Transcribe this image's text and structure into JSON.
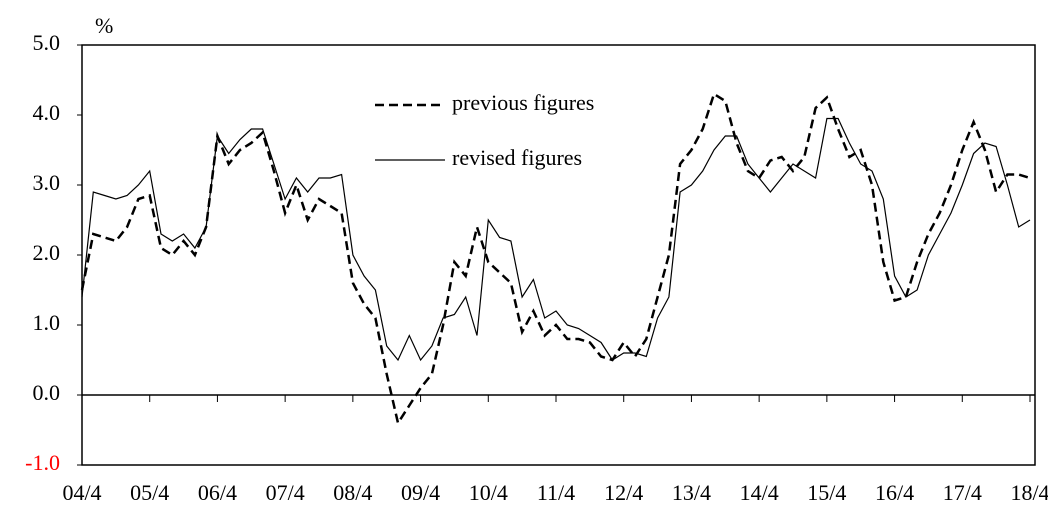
{
  "chart_data": {
    "type": "line",
    "y_axis_label": "%",
    "categories": [
      "04/4",
      null,
      null,
      null,
      null,
      null,
      "05/4",
      null,
      null,
      null,
      null,
      null,
      "06/4",
      null,
      null,
      null,
      null,
      null,
      "07/4",
      null,
      null,
      null,
      null,
      null,
      "08/4",
      null,
      null,
      null,
      null,
      null,
      "09/4",
      null,
      null,
      null,
      null,
      null,
      "10/4",
      null,
      null,
      null,
      null,
      null,
      "11/4",
      null,
      null,
      null,
      null,
      null,
      "12/4",
      null,
      null,
      null,
      null,
      null,
      "13/4",
      null,
      null,
      null,
      null,
      null,
      "14/4",
      null,
      null,
      null,
      null,
      null,
      "15/4",
      null,
      null,
      null,
      null,
      null,
      "16/4",
      null,
      null,
      null,
      null,
      null,
      "17/4",
      null,
      null,
      null,
      null,
      null,
      "18/4"
    ],
    "series": [
      {
        "name": "previous figures",
        "color": "#000000",
        "dash": true,
        "values": [
          1.5,
          2.3,
          2.25,
          2.2,
          2.4,
          2.8,
          2.85,
          2.1,
          2.0,
          2.2,
          2.0,
          2.4,
          3.7,
          3.3,
          3.5,
          3.6,
          3.75,
          3.2,
          2.6,
          3.0,
          2.5,
          2.8,
          2.7,
          2.6,
          1.6,
          1.3,
          1.1,
          0.3,
          -0.4,
          -0.15,
          0.1,
          0.3,
          1.0,
          1.9,
          1.7,
          2.4,
          1.9,
          1.75,
          1.6,
          0.9,
          1.2,
          0.85,
          1.0,
          0.8,
          0.8,
          0.75,
          0.55,
          0.5,
          0.75,
          0.55,
          0.8,
          1.4,
          2.0,
          3.3,
          3.5,
          3.8,
          4.3,
          4.2,
          3.6,
          3.2,
          3.1,
          3.35,
          3.4,
          3.2,
          3.4,
          4.1,
          4.25,
          3.8,
          3.4,
          3.5,
          3.0,
          1.9,
          1.35,
          1.4,
          1.9,
          2.3,
          2.6,
          3.0,
          3.5,
          3.9,
          3.5,
          2.9,
          3.15,
          3.15,
          3.1
        ]
      },
      {
        "name": "revised figures",
        "color": "#000000",
        "dash": false,
        "values": [
          1.4,
          2.9,
          2.85,
          2.8,
          2.85,
          3.0,
          3.2,
          2.3,
          2.2,
          2.3,
          2.1,
          2.4,
          3.7,
          3.45,
          3.65,
          3.8,
          3.8,
          3.3,
          2.8,
          3.1,
          2.9,
          3.1,
          3.1,
          3.15,
          2.0,
          1.7,
          1.5,
          0.7,
          0.5,
          0.85,
          0.5,
          0.7,
          1.1,
          1.15,
          1.4,
          0.85,
          2.5,
          2.25,
          2.2,
          1.4,
          1.65,
          1.1,
          1.2,
          1.0,
          0.95,
          0.85,
          0.75,
          0.5,
          0.6,
          0.6,
          0.55,
          1.1,
          1.4,
          2.9,
          3.0,
          3.2,
          3.5,
          3.7,
          3.7,
          3.3,
          3.1,
          2.9,
          3.1,
          3.3,
          3.2,
          3.1,
          3.95,
          3.95,
          3.6,
          3.3,
          3.2,
          2.8,
          1.7,
          1.4,
          1.5,
          2.0,
          2.3,
          2.6,
          3.0,
          3.45,
          3.6,
          3.55,
          3.0,
          2.4,
          2.5
        ]
      }
    ],
    "ylim": [
      -1,
      5
    ],
    "yticks": [
      {
        "value": -1,
        "label": "-1.0"
      },
      {
        "value": 0,
        "label": "0.0"
      },
      {
        "value": 1,
        "label": "1.0"
      },
      {
        "value": 2,
        "label": "2.0"
      },
      {
        "value": 3,
        "label": "3.0"
      },
      {
        "value": 4,
        "label": "4.0"
      },
      {
        "value": 5,
        "label": "5.0"
      }
    ],
    "negative_tick_color": "#ff0000",
    "legend": "inside",
    "grid": false
  }
}
